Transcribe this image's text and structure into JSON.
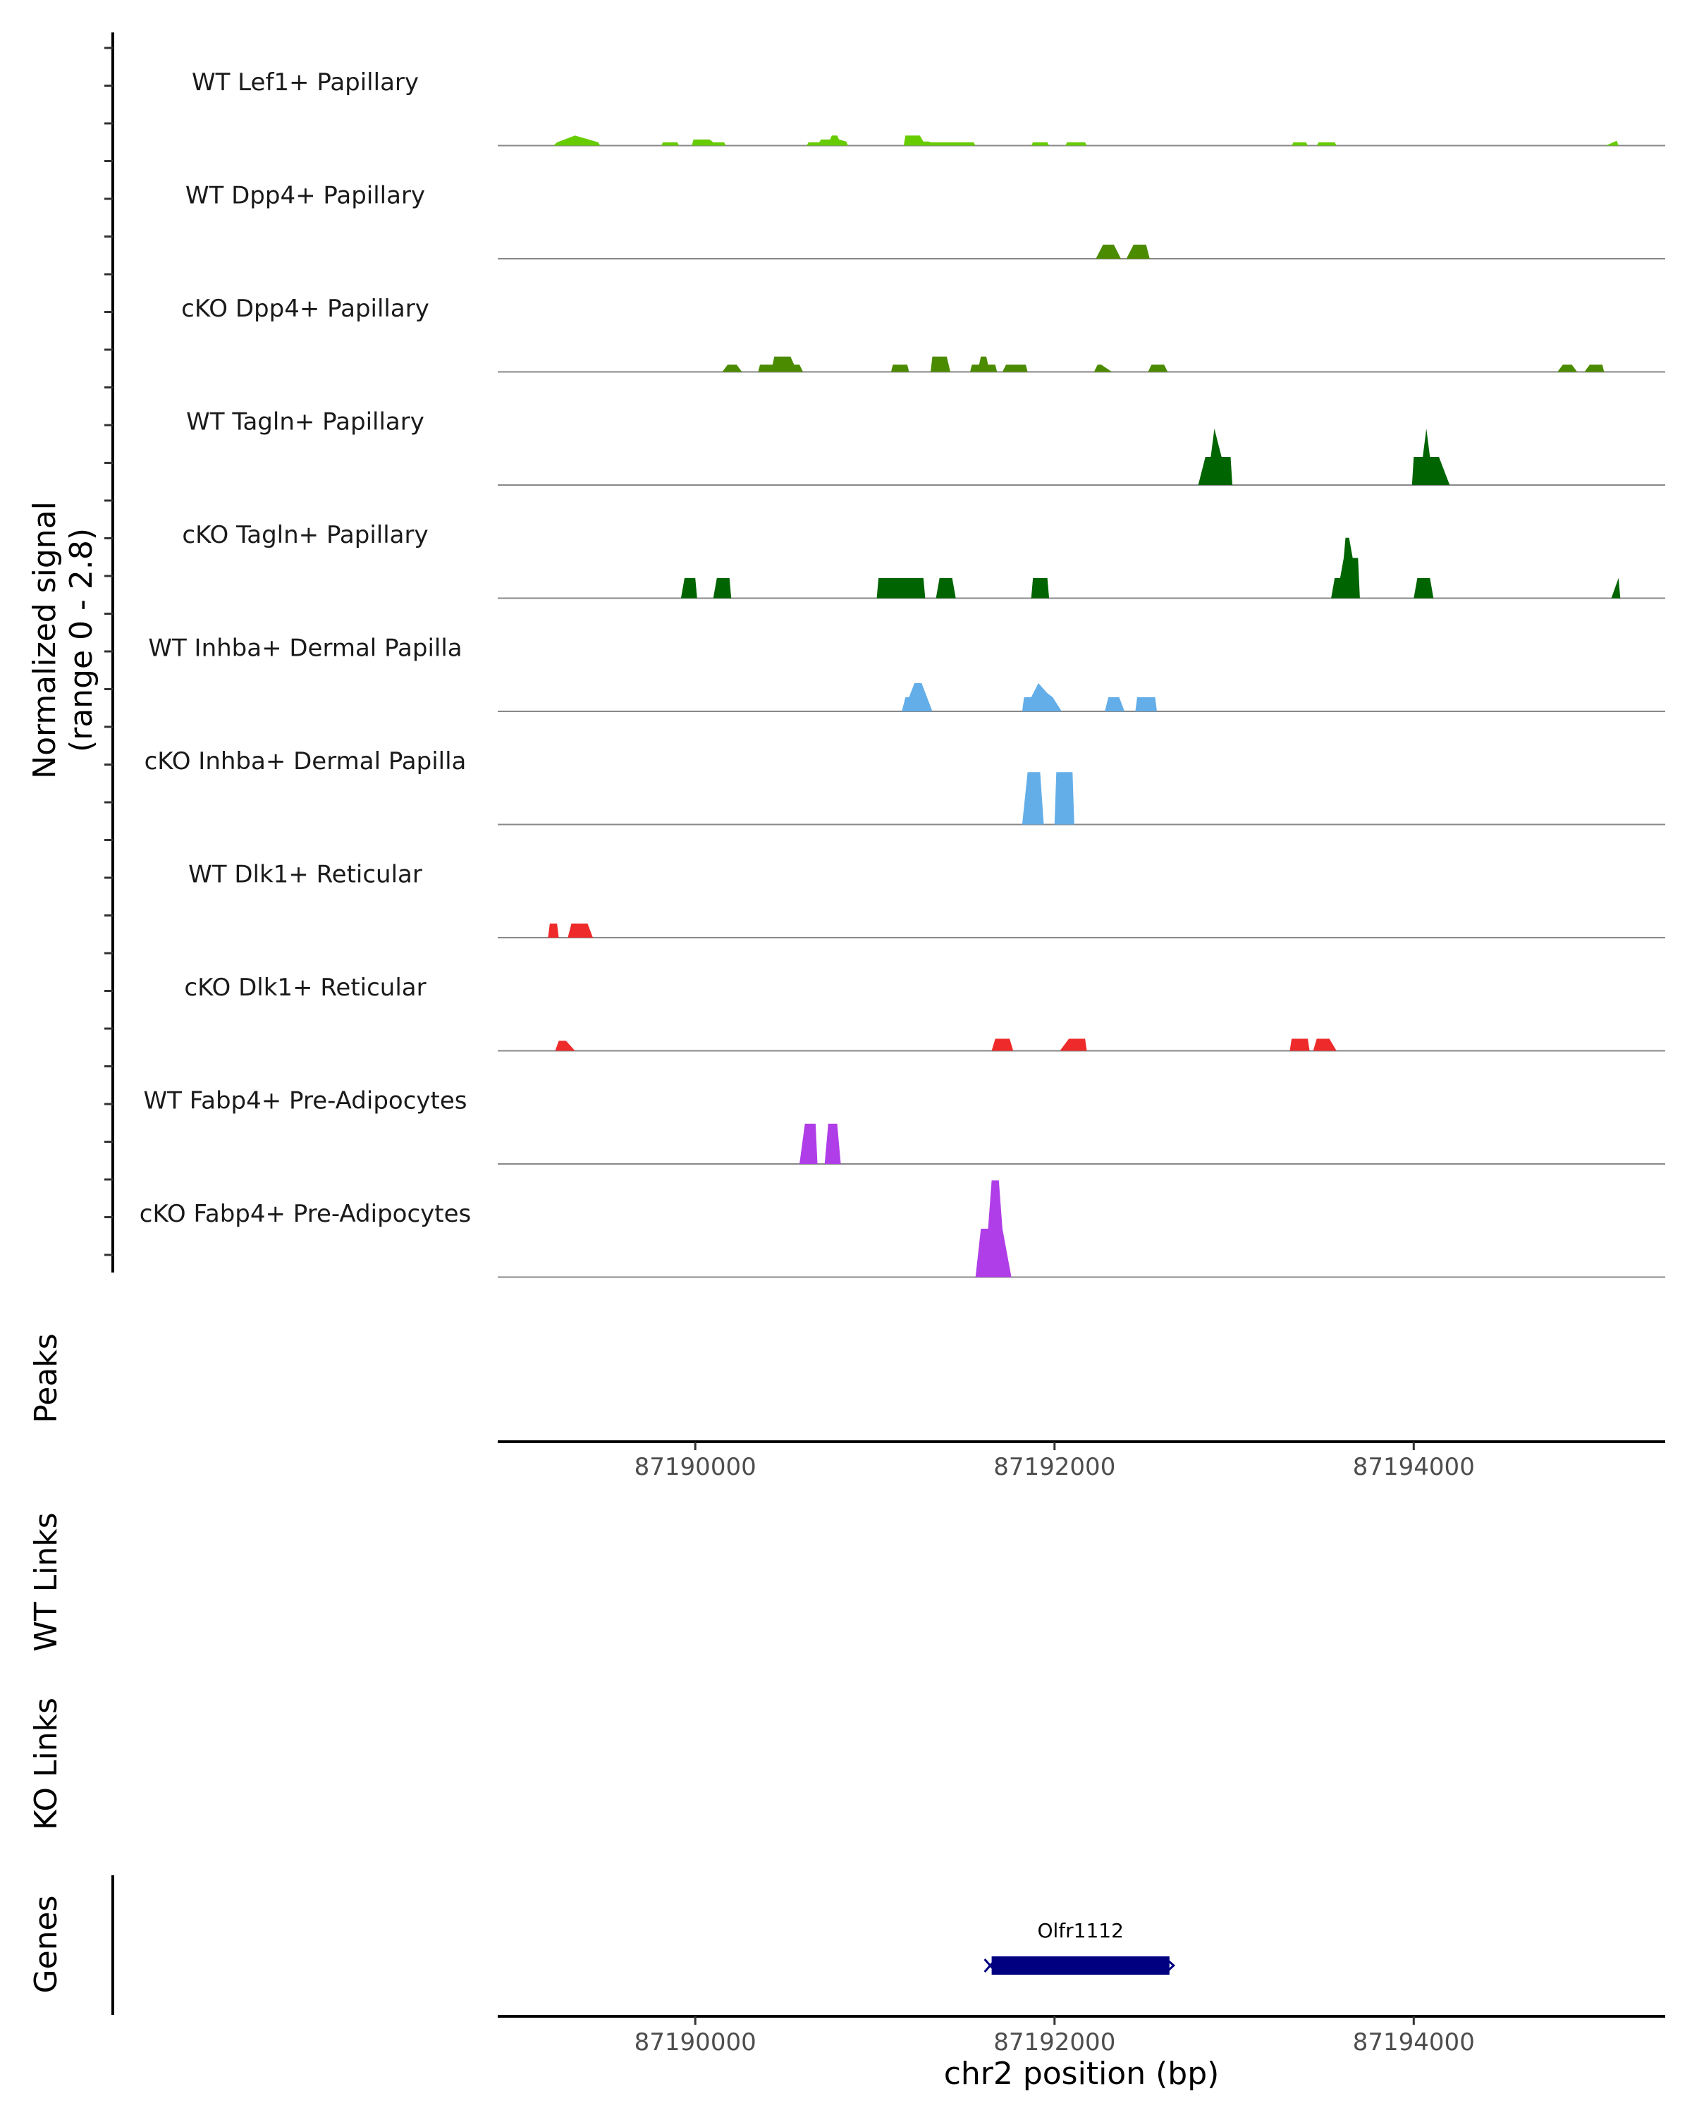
{
  "chart_data": {
    "type": "area",
    "title": "",
    "ylabel": "Normalized signal",
    "ylabel_range": "(range 0 - 2.8)",
    "ylim": [
      0,
      2.8
    ],
    "xlabel": "chr2 position (bp)",
    "xlim": [
      87188900,
      87195400
    ],
    "xticks": [
      87190000,
      87192000,
      87194000
    ],
    "xtick_labels": [
      "87190000",
      "87192000",
      "87194000"
    ],
    "panel_labels": {
      "peaks": "Peaks",
      "wt_links": "WT Links",
      "ko_links": "KO Links",
      "genes": "Genes"
    },
    "colors": {
      "lef1": "#66cc00",
      "dpp4": "#4b8b00",
      "tagln": "#006400",
      "inhba": "#63aee8",
      "dlk1": "#ee2a2a",
      "fabp4": "#b03ee8",
      "gene": "#000080",
      "baseline": "#888888",
      "axis": "#000000"
    },
    "tracks": [
      {
        "name": "WT Lef1+ Papillary",
        "color_key": "lef1",
        "points": [
          [
            87189210,
            0
          ],
          [
            87189230,
            0.08
          ],
          [
            87189330,
            0.25
          ],
          [
            87189430,
            0.12
          ],
          [
            87189460,
            0.08
          ],
          [
            87189470,
            0
          ],
          [
            87189810,
            0
          ],
          [
            87189820,
            0.08
          ],
          [
            87189900,
            0.08
          ],
          [
            87189910,
            0
          ],
          [
            87189980,
            0
          ],
          [
            87189990,
            0.15
          ],
          [
            87190080,
            0.15
          ],
          [
            87190100,
            0.08
          ],
          [
            87190160,
            0.08
          ],
          [
            87190170,
            0
          ],
          [
            87190620,
            0
          ],
          [
            87190630,
            0.08
          ],
          [
            87190690,
            0.08
          ],
          [
            87190700,
            0.15
          ],
          [
            87190750,
            0.15
          ],
          [
            87190760,
            0.25
          ],
          [
            87190790,
            0.25
          ],
          [
            87190800,
            0.15
          ],
          [
            87190840,
            0.1
          ],
          [
            87190850,
            0
          ],
          [
            87191160,
            0
          ],
          [
            87191170,
            0.25
          ],
          [
            87191250,
            0.25
          ],
          [
            87191270,
            0.1
          ],
          [
            87191300,
            0.1
          ],
          [
            87191310,
            0.08
          ],
          [
            87191550,
            0.08
          ],
          [
            87191560,
            0
          ],
          [
            87191870,
            0
          ],
          [
            87191880,
            0.08
          ],
          [
            87191960,
            0.08
          ],
          [
            87191970,
            0
          ],
          [
            87192060,
            0
          ],
          [
            87192070,
            0.08
          ],
          [
            87192170,
            0.08
          ],
          [
            87192180,
            0
          ],
          [
            87193320,
            0
          ],
          [
            87193330,
            0.08
          ],
          [
            87193400,
            0.08
          ],
          [
            87193410,
            0
          ],
          [
            87193460,
            0
          ],
          [
            87193470,
            0.08
          ],
          [
            87193560,
            0.08
          ],
          [
            87193570,
            0
          ],
          [
            87195070,
            0
          ],
          [
            87195130,
            0.12
          ],
          [
            87195140,
            0
          ]
        ]
      },
      {
        "name": "WT Dpp4+ Papillary",
        "color_key": "dpp4",
        "points": [
          [
            87192230,
            0
          ],
          [
            87192270,
            0.35
          ],
          [
            87192330,
            0.35
          ],
          [
            87192370,
            0
          ],
          [
            87192400,
            0
          ],
          [
            87192440,
            0.35
          ],
          [
            87192510,
            0.35
          ],
          [
            87192530,
            0
          ]
        ]
      },
      {
        "name": "cKO Dpp4+ Papillary",
        "color_key": "dpp4",
        "points": [
          [
            87190150,
            0
          ],
          [
            87190180,
            0.18
          ],
          [
            87190230,
            0.18
          ],
          [
            87190260,
            0
          ],
          [
            87190350,
            0
          ],
          [
            87190360,
            0.18
          ],
          [
            87190430,
            0.18
          ],
          [
            87190440,
            0.38
          ],
          [
            87190530,
            0.38
          ],
          [
            87190550,
            0.18
          ],
          [
            87190580,
            0.18
          ],
          [
            87190600,
            0
          ],
          [
            87191090,
            0
          ],
          [
            87191100,
            0.18
          ],
          [
            87191180,
            0.18
          ],
          [
            87191190,
            0
          ],
          [
            87191310,
            0
          ],
          [
            87191320,
            0.38
          ],
          [
            87191400,
            0.38
          ],
          [
            87191420,
            0
          ],
          [
            87191530,
            0
          ],
          [
            87191540,
            0.18
          ],
          [
            87191580,
            0.18
          ],
          [
            87191590,
            0.38
          ],
          [
            87191620,
            0.38
          ],
          [
            87191630,
            0.18
          ],
          [
            87191670,
            0.18
          ],
          [
            87191680,
            0
          ],
          [
            87191710,
            0
          ],
          [
            87191730,
            0.18
          ],
          [
            87191840,
            0.18
          ],
          [
            87191850,
            0
          ],
          [
            87192220,
            0
          ],
          [
            87192240,
            0.18
          ],
          [
            87192260,
            0.18
          ],
          [
            87192320,
            0
          ],
          [
            87192520,
            0
          ],
          [
            87192540,
            0.18
          ],
          [
            87192610,
            0.18
          ],
          [
            87192630,
            0
          ],
          [
            87194800,
            0
          ],
          [
            87194830,
            0.18
          ],
          [
            87194880,
            0.18
          ],
          [
            87194910,
            0
          ],
          [
            87194950,
            0
          ],
          [
            87194980,
            0.18
          ],
          [
            87195050,
            0.18
          ],
          [
            87195060,
            0
          ]
        ]
      },
      {
        "name": "WT Tagln+ Papillary",
        "color_key": "tagln",
        "points": [
          [
            87192800,
            0
          ],
          [
            87192840,
            0.7
          ],
          [
            87192870,
            0.7
          ],
          [
            87192890,
            1.4
          ],
          [
            87192930,
            0.7
          ],
          [
            87192980,
            0.7
          ],
          [
            87192990,
            0
          ],
          [
            87193990,
            0
          ],
          [
            87194000,
            0.7
          ],
          [
            87194050,
            0.7
          ],
          [
            87194070,
            1.4
          ],
          [
            87194090,
            0.7
          ],
          [
            87194140,
            0.7
          ],
          [
            87194200,
            0
          ]
        ]
      },
      {
        "name": "cKO Tagln+ Papillary",
        "color_key": "tagln",
        "points": [
          [
            87189920,
            0
          ],
          [
            87189940,
            0.5
          ],
          [
            87190000,
            0.5
          ],
          [
            87190010,
            0
          ],
          [
            87190100,
            0
          ],
          [
            87190120,
            0.5
          ],
          [
            87190190,
            0.5
          ],
          [
            87190200,
            0
          ],
          [
            87191010,
            0
          ],
          [
            87191020,
            0.5
          ],
          [
            87191270,
            0.5
          ],
          [
            87191280,
            0
          ],
          [
            87191340,
            0
          ],
          [
            87191360,
            0.5
          ],
          [
            87191430,
            0.5
          ],
          [
            87191450,
            0
          ],
          [
            87191870,
            0
          ],
          [
            87191880,
            0.5
          ],
          [
            87191960,
            0.5
          ],
          [
            87191970,
            0
          ],
          [
            87193540,
            0
          ],
          [
            87193560,
            0.5
          ],
          [
            87193590,
            0.5
          ],
          [
            87193610,
            1.0
          ],
          [
            87193620,
            1.5
          ],
          [
            87193640,
            1.5
          ],
          [
            87193660,
            1.0
          ],
          [
            87193690,
            1.0
          ],
          [
            87193700,
            0
          ],
          [
            87194000,
            0
          ],
          [
            87194020,
            0.5
          ],
          [
            87194090,
            0.5
          ],
          [
            87194110,
            0
          ],
          [
            87195100,
            0
          ],
          [
            87195140,
            0.5
          ],
          [
            87195150,
            0
          ]
        ]
      },
      {
        "name": "WT Inhba+ Dermal Papilla",
        "color_key": "inhba",
        "points": [
          [
            87191150,
            0
          ],
          [
            87191170,
            0.35
          ],
          [
            87191190,
            0.35
          ],
          [
            87191220,
            0.7
          ],
          [
            87191260,
            0.7
          ],
          [
            87191290,
            0.35
          ],
          [
            87191320,
            0
          ],
          [
            87191820,
            0
          ],
          [
            87191830,
            0.35
          ],
          [
            87191870,
            0.35
          ],
          [
            87191910,
            0.7
          ],
          [
            87191960,
            0.45
          ],
          [
            87191990,
            0.35
          ],
          [
            87192040,
            0
          ],
          [
            87192280,
            0
          ],
          [
            87192300,
            0.35
          ],
          [
            87192360,
            0.35
          ],
          [
            87192390,
            0
          ],
          [
            87192450,
            0
          ],
          [
            87192460,
            0.35
          ],
          [
            87192560,
            0.35
          ],
          [
            87192570,
            0
          ]
        ]
      },
      {
        "name": "cKO Inhba+ Dermal Papilla",
        "color_key": "inhba",
        "points": [
          [
            87191820,
            0
          ],
          [
            87191850,
            1.3
          ],
          [
            87191920,
            1.3
          ],
          [
            87191940,
            0
          ],
          [
            87192000,
            0
          ],
          [
            87192010,
            1.3
          ],
          [
            87192100,
            1.3
          ],
          [
            87192110,
            0
          ]
        ]
      },
      {
        "name": "WT Dlk1+ Reticular",
        "color_key": "dlk1",
        "points": [
          [
            87189180,
            0
          ],
          [
            87189190,
            0.35
          ],
          [
            87189230,
            0.35
          ],
          [
            87189240,
            0
          ],
          [
            87189290,
            0
          ],
          [
            87189310,
            0.35
          ],
          [
            87189400,
            0.35
          ],
          [
            87189430,
            0
          ]
        ]
      },
      {
        "name": "cKO Dlk1+ Reticular",
        "color_key": "dlk1",
        "points": [
          [
            87189220,
            0
          ],
          [
            87189240,
            0.25
          ],
          [
            87189280,
            0.25
          ],
          [
            87189330,
            0
          ],
          [
            87191650,
            0
          ],
          [
            87191670,
            0.3
          ],
          [
            87191750,
            0.3
          ],
          [
            87191770,
            0
          ],
          [
            87192030,
            0
          ],
          [
            87192080,
            0.3
          ],
          [
            87192170,
            0.3
          ],
          [
            87192180,
            0
          ],
          [
            87193310,
            0
          ],
          [
            87193320,
            0.3
          ],
          [
            87193410,
            0.3
          ],
          [
            87193420,
            0
          ],
          [
            87193440,
            0
          ],
          [
            87193460,
            0.3
          ],
          [
            87193530,
            0.3
          ],
          [
            87193570,
            0
          ]
        ]
      },
      {
        "name": "WT Fabp4+ Pre-Adipocytes",
        "color_key": "fabp4",
        "points": [
          [
            87190580,
            0
          ],
          [
            87190610,
            1.0
          ],
          [
            87190670,
            1.0
          ],
          [
            87190680,
            0
          ],
          [
            87190720,
            0
          ],
          [
            87190740,
            1.0
          ],
          [
            87190790,
            1.0
          ],
          [
            87190810,
            0
          ]
        ]
      },
      {
        "name": "cKO Fabp4+ Pre-Adipocytes",
        "color_key": "fabp4",
        "points": [
          [
            87191560,
            0
          ],
          [
            87191590,
            1.2
          ],
          [
            87191630,
            1.2
          ],
          [
            87191650,
            2.4
          ],
          [
            87191690,
            2.4
          ],
          [
            87191710,
            1.2
          ],
          [
            87191760,
            0
          ]
        ]
      }
    ],
    "genes": [
      {
        "name": "Olfr1112",
        "start": 87191650,
        "end": 87192640,
        "strand": "-"
      }
    ]
  }
}
